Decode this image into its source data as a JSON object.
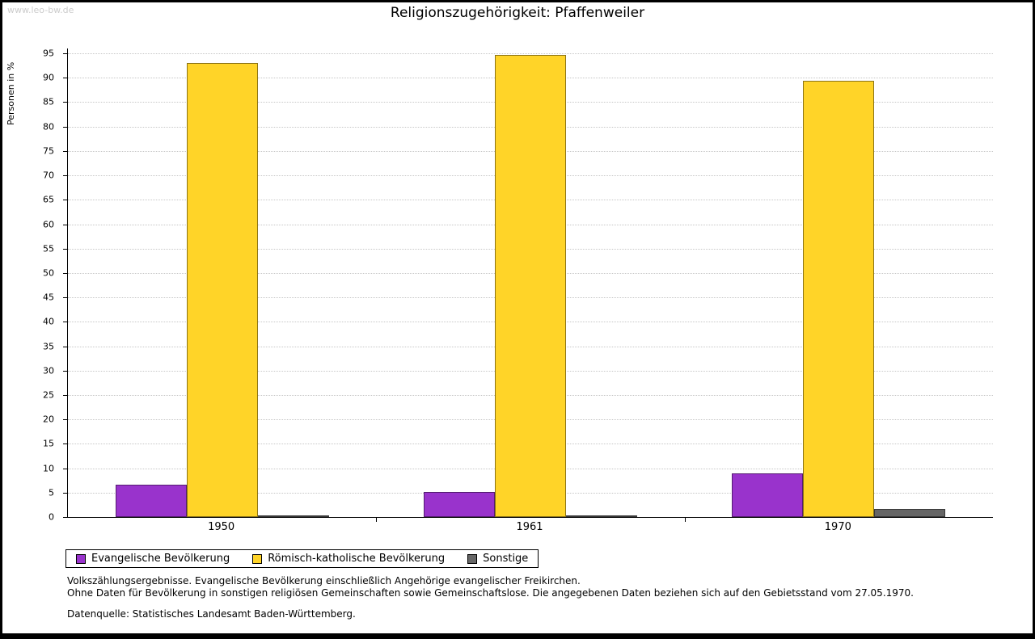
{
  "page": {
    "watermark": "www.leo-bw.de"
  },
  "chart_data": {
    "type": "bar",
    "title": "Religionszugehörigkeit: Pfaffenweiler",
    "ylabel": "Personen in %",
    "xlabel": "",
    "categories": [
      "1950",
      "1961",
      "1970"
    ],
    "series": [
      {
        "name": "Evangelische Bevölkerung",
        "color": "#9933cc",
        "values": [
          6.7,
          5.1,
          8.9
        ]
      },
      {
        "name": "Römisch-katholische Bevölkerung",
        "color": "#ffd428",
        "values": [
          93.0,
          94.6,
          89.4
        ]
      },
      {
        "name": "Sonstige",
        "color": "#666666",
        "values": [
          0.3,
          0.3,
          1.7
        ]
      }
    ],
    "ylim": [
      0,
      96
    ],
    "yticks": {
      "min": 0,
      "max": 95,
      "step": 5
    },
    "grid": true,
    "gridline_color": "#c6c6c6",
    "legend_position": "bottom"
  },
  "footnotes": {
    "line1": "Volkszählungsergebnisse. Evangelische Bevölkerung einschließlich Angehörige evangelischer Freikirchen.",
    "line2": "Ohne Daten für Bevölkerung in sonstigen religiösen Gemeinschaften sowie Gemeinschaftslose. Die angegebenen Daten beziehen sich auf den Gebietsstand vom 27.05.1970.",
    "source": "Datenquelle: Statistisches Landesamt Baden-Württemberg."
  }
}
